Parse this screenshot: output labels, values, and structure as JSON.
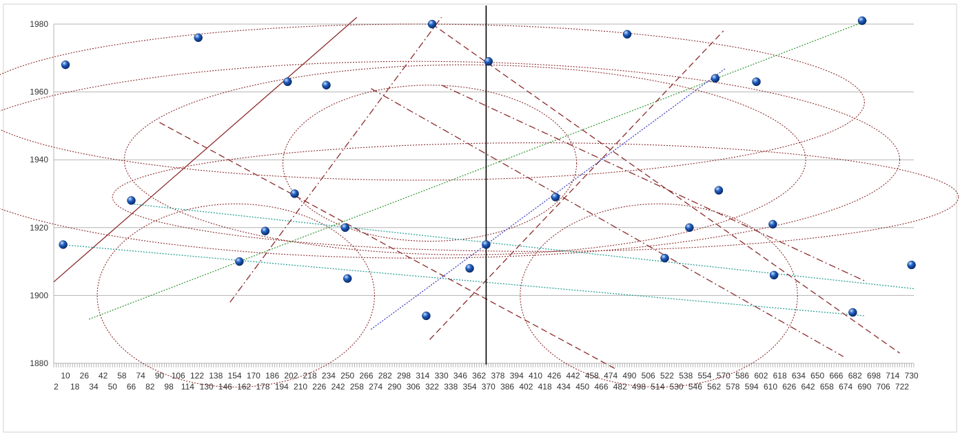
{
  "chart_data": {
    "type": "scatter",
    "title": "",
    "xlabel": "",
    "ylabel": "",
    "xlim": [
      0,
      732
    ],
    "ylim": [
      1880,
      1980
    ],
    "y_ticks": [
      1880,
      1900,
      1920,
      1940,
      1960,
      1980
    ],
    "x_ticks_row1": [
      10,
      26,
      42,
      58,
      74,
      90,
      106,
      122,
      138,
      154,
      170,
      186,
      202,
      218,
      234,
      250,
      266,
      282,
      298,
      314,
      330,
      346,
      362,
      378,
      394,
      410,
      426,
      442,
      458,
      474,
      490,
      506,
      522,
      538,
      554,
      570,
      586,
      602,
      618,
      634,
      650,
      666,
      682,
      698,
      714,
      730
    ],
    "x_ticks_row2": [
      2,
      18,
      34,
      50,
      66,
      82,
      98,
      114,
      130,
      146,
      162,
      178,
      194,
      210,
      226,
      242,
      258,
      274,
      290,
      306,
      322,
      338,
      354,
      370,
      386,
      402,
      418,
      434,
      450,
      466,
      482,
      498,
      514,
      530,
      546,
      562,
      578,
      594,
      610,
      626,
      642,
      658,
      674,
      690,
      706,
      722
    ],
    "grid": true,
    "marker_color": "#1f5fbf",
    "points": [
      {
        "x": 10,
        "y": 1968
      },
      {
        "x": 8,
        "y": 1915
      },
      {
        "x": 66,
        "y": 1928
      },
      {
        "x": 123,
        "y": 1976
      },
      {
        "x": 158,
        "y": 1910
      },
      {
        "x": 180,
        "y": 1919
      },
      {
        "x": 199,
        "y": 1963
      },
      {
        "x": 205,
        "y": 1930
      },
      {
        "x": 232,
        "y": 1962
      },
      {
        "x": 248,
        "y": 1920
      },
      {
        "x": 250,
        "y": 1905
      },
      {
        "x": 317,
        "y": 1894
      },
      {
        "x": 322,
        "y": 1980
      },
      {
        "x": 354,
        "y": 1908
      },
      {
        "x": 368,
        "y": 1915
      },
      {
        "x": 370,
        "y": 1969
      },
      {
        "x": 427,
        "y": 1929
      },
      {
        "x": 488,
        "y": 1977
      },
      {
        "x": 520,
        "y": 1911
      },
      {
        "x": 541,
        "y": 1920
      },
      {
        "x": 563,
        "y": 1964
      },
      {
        "x": 566,
        "y": 1931
      },
      {
        "x": 598,
        "y": 1963
      },
      {
        "x": 612,
        "y": 1921
      },
      {
        "x": 613,
        "y": 1906
      },
      {
        "x": 680,
        "y": 1895
      },
      {
        "x": 688,
        "y": 1981
      },
      {
        "x": 730,
        "y": 1909
      }
    ],
    "vertical_line_x": 368,
    "lines": [
      {
        "x1": 0,
        "y1": 1904,
        "x2": 258,
        "y2": 1982,
        "color": "#8b2a2a",
        "dash": "solid"
      },
      {
        "x1": 6,
        "y1": 1915,
        "x2": 690,
        "y2": 1894,
        "color": "#2aa198",
        "dash": "dot"
      },
      {
        "x1": 66,
        "y1": 1927,
        "x2": 732,
        "y2": 1902,
        "color": "#2aa198",
        "dash": "dot"
      },
      {
        "x1": 30,
        "y1": 1893,
        "x2": 692,
        "y2": 1981,
        "color": "#3a9a3a",
        "dash": "dot"
      },
      {
        "x1": 150,
        "y1": 1898,
        "x2": 330,
        "y2": 1982,
        "color": "#8b2a2a",
        "dash": "dashdot"
      },
      {
        "x1": 90,
        "y1": 1951,
        "x2": 480,
        "y2": 1878,
        "color": "#8b2a2a",
        "dash": "dash"
      },
      {
        "x1": 320,
        "y1": 1887,
        "x2": 570,
        "y2": 1978,
        "color": "#8b2a2a",
        "dash": "dash"
      },
      {
        "x1": 270,
        "y1": 1890,
        "x2": 572,
        "y2": 1967,
        "color": "#3f3fbf",
        "dash": "dot"
      },
      {
        "x1": 322,
        "y1": 1980,
        "x2": 720,
        "y2": 1883,
        "color": "#8b2a2a",
        "dash": "dash"
      },
      {
        "x1": 270,
        "y1": 1961,
        "x2": 672,
        "y2": 1882,
        "color": "#8b2a2a",
        "dash": "dashdot"
      },
      {
        "x1": 330,
        "y1": 1962,
        "x2": 692,
        "y2": 1904,
        "color": "#8b2a2a",
        "dash": "dashdot"
      }
    ],
    "ellipses": [
      {
        "cx": 310,
        "cy": 1957,
        "rx": 380,
        "ry": 23,
        "color": "#8b2a2a"
      },
      {
        "cx": 310,
        "cy": 1940,
        "rx": 410,
        "ry": 29,
        "color": "#8b2a2a"
      },
      {
        "cx": 350,
        "cy": 1940,
        "rx": 290,
        "ry": 28,
        "color": "#8b2a2a"
      },
      {
        "cx": 320,
        "cy": 1939,
        "rx": 125,
        "ry": 23,
        "color": "#8b2a2a"
      },
      {
        "cx": 410,
        "cy": 1929,
        "rx": 360,
        "ry": 16,
        "color": "#8b2a2a"
      },
      {
        "cx": 155,
        "cy": 1900,
        "rx": 118,
        "ry": 27,
        "color": "#8b2a2a"
      },
      {
        "cx": 515,
        "cy": 1900,
        "rx": 118,
        "ry": 27,
        "color": "#8b2a2a"
      }
    ]
  }
}
